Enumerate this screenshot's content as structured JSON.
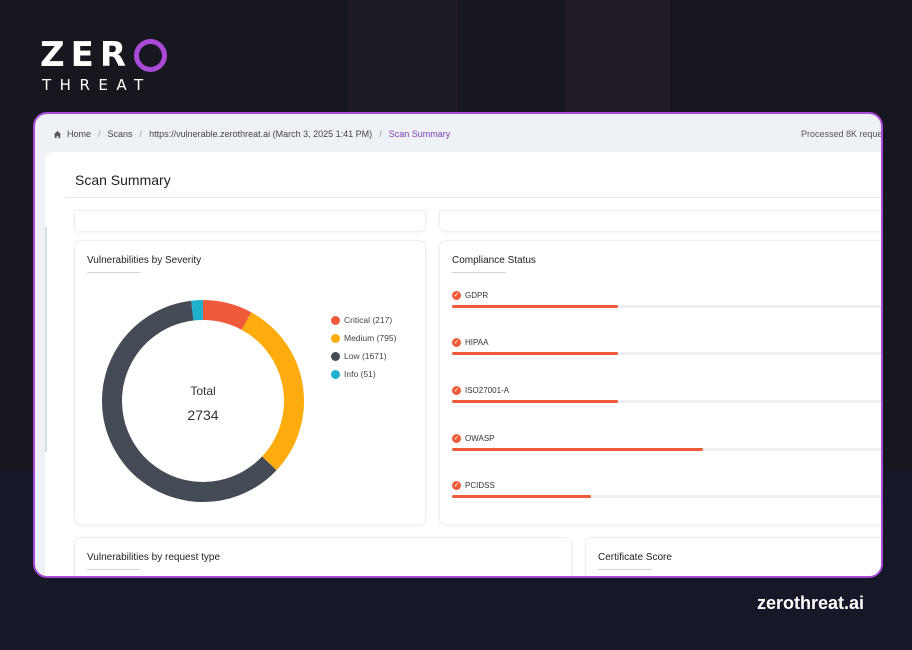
{
  "brand": {
    "logo_top": "ZER",
    "logo_bottom": "THREAT",
    "url": "zerothreat.ai",
    "accent": "#a74ad5"
  },
  "breadcrumb": {
    "items": [
      "Home",
      "Scans",
      "https://vulnerable.zerothreat.ai (March 3, 2025 1:41 PM)"
    ],
    "current": "Scan Summary",
    "processed": "Processed 8K reque"
  },
  "page": {
    "title": "Scan Summary"
  },
  "severity": {
    "title": "Vulnerabilities by Severity",
    "total_label": "Total",
    "total_value": "2734",
    "legend": [
      {
        "label": "Critical (217)",
        "value": 217,
        "color": "#ef5a3b"
      },
      {
        "label": "Medium (795)",
        "value": 795,
        "color": "#fdab0d"
      },
      {
        "label": "Low (1671)",
        "value": 1671,
        "color": "#444b57"
      },
      {
        "label": "Info (51)",
        "value": 51,
        "color": "#1fb2cf"
      }
    ]
  },
  "compliance": {
    "title": "Compliance Status",
    "items": [
      {
        "label": "GDPR",
        "fill": 0.37
      },
      {
        "label": "HIPAA",
        "fill": 0.37
      },
      {
        "label": "ISO27001-A",
        "fill": 0.37
      },
      {
        "label": "OWASP",
        "fill": 0.56
      },
      {
        "label": "PCIDSS",
        "fill": 0.31
      }
    ]
  },
  "request_type": {
    "title": "Vulnerabilities by request type"
  },
  "certificate": {
    "title": "Certificate Score"
  }
}
